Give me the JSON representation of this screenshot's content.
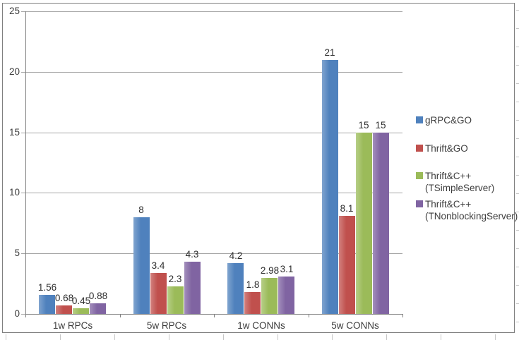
{
  "chart_data": {
    "type": "bar",
    "title": "",
    "categories": [
      "1w RPCs",
      "5w RPCs",
      "1w CONNs",
      "5w CONNs"
    ],
    "series": [
      {
        "name": "gRPC&GO",
        "legend_lines": [
          "gRPC&GO"
        ],
        "color": "#4F81BD",
        "values": [
          1.56,
          8,
          4.2,
          21
        ],
        "labels": [
          "1.56",
          "8",
          "4.2",
          "21"
        ]
      },
      {
        "name": "Thrift&GO",
        "legend_lines": [
          "Thrift&GO"
        ],
        "color": "#C0504D",
        "values": [
          0.68,
          3.4,
          1.8,
          8.1
        ],
        "labels": [
          "0.68",
          "3.4",
          "1.8",
          "8.1"
        ]
      },
      {
        "name": "Thrift&C++ (TSimpleServer)",
        "legend_lines": [
          "Thrift&C++",
          "(TSimpleServer)"
        ],
        "color": "#9BBB59",
        "values": [
          0.45,
          2.3,
          2.98,
          15
        ],
        "labels": [
          "0.45",
          "2.3",
          "2.98",
          "15"
        ]
      },
      {
        "name": "Thrift&C++ (TNonblockingServer)",
        "legend_lines": [
          "Thrift&C++",
          "(TNonblockingServer)"
        ],
        "color": "#8064A2",
        "values": [
          0.88,
          4.3,
          3.1,
          15
        ],
        "labels": [
          "0.88",
          "4.3",
          "3.1",
          "15"
        ]
      }
    ],
    "y_axis": {
      "min": 0,
      "max": 25,
      "step": 5,
      "ticks": [
        "0",
        "5",
        "10",
        "15",
        "20",
        "25"
      ]
    },
    "xlabel": "",
    "ylabel": "",
    "grid": true,
    "legend_position": "right"
  },
  "colors": {
    "grid": "#a6a6a6",
    "axis": "#808080",
    "text": "#3d3d3d",
    "frame": "#7f7f7f",
    "background": "#ffffff"
  }
}
